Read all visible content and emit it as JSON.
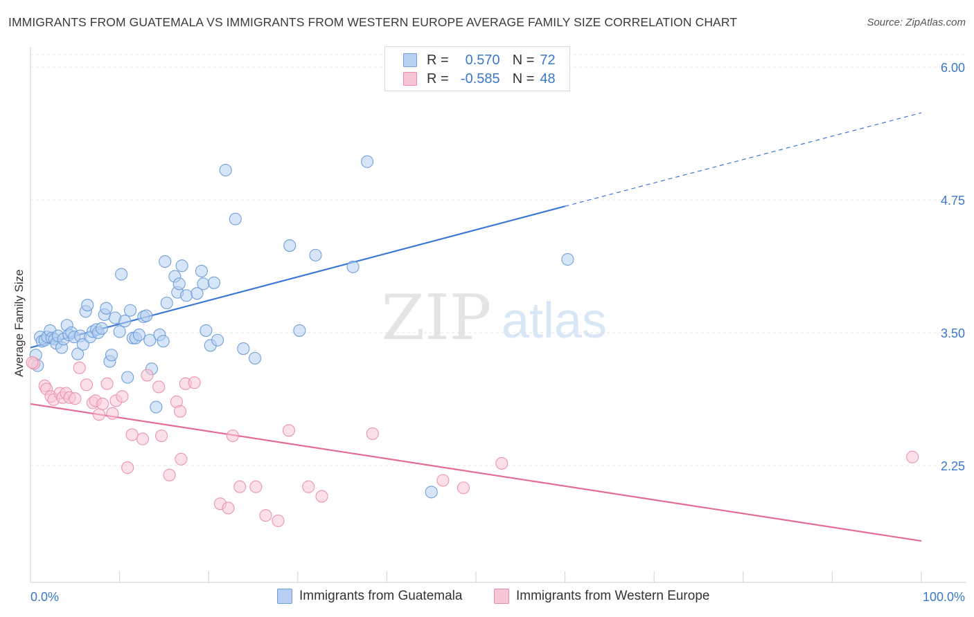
{
  "title": "IMMIGRANTS FROM GUATEMALA VS IMMIGRANTS FROM WESTERN EUROPE AVERAGE FAMILY SIZE CORRELATION CHART",
  "source": "Source: ZipAtlas.com",
  "watermark": {
    "zip": "ZIP",
    "atlas": "atlas"
  },
  "legend": {
    "r_label": "R =",
    "n_label": "N =",
    "rows": [
      {
        "r": "0.570",
        "n": "72",
        "color": "#a9c8f0",
        "border": "#6f9fd8"
      },
      {
        "r": "-0.585",
        "n": "48",
        "color": "#f6bfd0",
        "border": "#e98aa9"
      }
    ]
  },
  "colors": {
    "blue": "#3a78d4",
    "blue_fill": "#b6d0f3",
    "pink": "#e46a98",
    "pink_fill": "#f7c6d6",
    "tick_text": "#3a78c9"
  },
  "chart_data": {
    "type": "scatter",
    "title": "IMMIGRANTS FROM GUATEMALA VS IMMIGRANTS FROM WESTERN EUROPE AVERAGE FAMILY SIZE CORRELATION CHART",
    "xlabel": "",
    "ylabel": "Average Family Size",
    "xlim": [
      0,
      100
    ],
    "ylim": [
      1.0,
      6.15
    ],
    "x_tick_labels": [
      "0.0%",
      "100.0%"
    ],
    "y_ticks": [
      2.25,
      3.5,
      4.75,
      6.0
    ],
    "y_tick_labels": [
      "2.25",
      "3.50",
      "4.75",
      "6.00"
    ],
    "grid": "horizontal dashed",
    "series": [
      {
        "name": "Immigrants from Guatemala",
        "points": [
          [
            0.6,
            3.29
          ],
          [
            0.8,
            3.19
          ],
          [
            1.1,
            3.46
          ],
          [
            1.3,
            3.42
          ],
          [
            1.6,
            3.43
          ],
          [
            1.9,
            3.46
          ],
          [
            2.2,
            3.52
          ],
          [
            2.4,
            3.45
          ],
          [
            2.7,
            3.44
          ],
          [
            2.9,
            3.4
          ],
          [
            3.1,
            3.47
          ],
          [
            3.5,
            3.36
          ],
          [
            3.7,
            3.44
          ],
          [
            4.1,
            3.57
          ],
          [
            4.3,
            3.48
          ],
          [
            4.6,
            3.5
          ],
          [
            4.9,
            3.46
          ],
          [
            5.3,
            3.3
          ],
          [
            5.6,
            3.47
          ],
          [
            5.9,
            3.39
          ],
          [
            6.2,
            3.7
          ],
          [
            6.4,
            3.76
          ],
          [
            6.7,
            3.46
          ],
          [
            7.0,
            3.51
          ],
          [
            7.4,
            3.53
          ],
          [
            7.6,
            3.5
          ],
          [
            8.0,
            3.54
          ],
          [
            8.3,
            3.67
          ],
          [
            8.5,
            3.73
          ],
          [
            8.9,
            3.23
          ],
          [
            9.1,
            3.29
          ],
          [
            9.5,
            3.64
          ],
          [
            10.0,
            3.51
          ],
          [
            10.2,
            4.05
          ],
          [
            10.6,
            3.61
          ],
          [
            10.9,
            3.08
          ],
          [
            11.2,
            3.71
          ],
          [
            11.5,
            3.45
          ],
          [
            11.8,
            3.45
          ],
          [
            12.2,
            3.48
          ],
          [
            12.7,
            3.65
          ],
          [
            13.0,
            3.66
          ],
          [
            13.4,
            3.43
          ],
          [
            13.6,
            3.16
          ],
          [
            14.1,
            2.8
          ],
          [
            14.5,
            3.48
          ],
          [
            14.9,
            3.42
          ],
          [
            15.1,
            4.17
          ],
          [
            15.3,
            3.78
          ],
          [
            16.2,
            4.03
          ],
          [
            16.5,
            3.88
          ],
          [
            16.7,
            3.96
          ],
          [
            17.0,
            4.13
          ],
          [
            17.5,
            3.85
          ],
          [
            18.7,
            3.87
          ],
          [
            19.2,
            4.08
          ],
          [
            19.4,
            3.96
          ],
          [
            19.7,
            3.52
          ],
          [
            20.2,
            3.38
          ],
          [
            20.6,
            3.97
          ],
          [
            21.0,
            3.43
          ],
          [
            21.9,
            5.03
          ],
          [
            23.0,
            4.57
          ],
          [
            23.9,
            3.35
          ],
          [
            25.2,
            3.26
          ],
          [
            29.1,
            4.32
          ],
          [
            30.2,
            3.52
          ],
          [
            32.0,
            4.23
          ],
          [
            36.2,
            4.12
          ],
          [
            37.8,
            5.11
          ],
          [
            45.0,
            2.0
          ],
          [
            60.3,
            4.19
          ]
        ]
      },
      {
        "name": "Immigrants from Western Europe",
        "points": [
          [
            0.4,
            3.21
          ],
          [
            1.6,
            3.0
          ],
          [
            1.8,
            2.97
          ],
          [
            2.3,
            2.9
          ],
          [
            2.6,
            2.87
          ],
          [
            3.3,
            2.93
          ],
          [
            3.6,
            2.89
          ],
          [
            4.0,
            2.93
          ],
          [
            4.4,
            2.89
          ],
          [
            5.0,
            2.88
          ],
          [
            5.5,
            3.17
          ],
          [
            6.3,
            3.01
          ],
          [
            7.0,
            2.84
          ],
          [
            7.3,
            2.86
          ],
          [
            7.7,
            2.73
          ],
          [
            8.1,
            2.83
          ],
          [
            8.6,
            3.02
          ],
          [
            9.2,
            2.74
          ],
          [
            9.6,
            2.86
          ],
          [
            10.3,
            2.9
          ],
          [
            10.9,
            2.23
          ],
          [
            11.4,
            2.54
          ],
          [
            12.6,
            2.5
          ],
          [
            13.1,
            3.1
          ],
          [
            14.4,
            2.99
          ],
          [
            14.7,
            2.53
          ],
          [
            15.6,
            2.16
          ],
          [
            16.4,
            2.85
          ],
          [
            16.8,
            2.76
          ],
          [
            16.9,
            2.31
          ],
          [
            17.4,
            3.02
          ],
          [
            18.4,
            3.03
          ],
          [
            21.3,
            1.89
          ],
          [
            22.2,
            1.85
          ],
          [
            22.7,
            2.53
          ],
          [
            23.5,
            2.05
          ],
          [
            25.3,
            2.05
          ],
          [
            26.4,
            1.78
          ],
          [
            27.8,
            1.73
          ],
          [
            29.0,
            2.58
          ],
          [
            31.2,
            2.05
          ],
          [
            32.7,
            1.96
          ],
          [
            38.4,
            2.55
          ],
          [
            46.3,
            2.11
          ],
          [
            48.6,
            2.04
          ],
          [
            52.9,
            2.27
          ],
          [
            99.0,
            2.33
          ],
          [
            0.2,
            3.22
          ]
        ]
      }
    ],
    "trendlines": [
      {
        "series": "Immigrants from Guatemala",
        "x": [
          0,
          60
        ],
        "y": [
          3.36,
          4.69
        ],
        "dashed_extension_to": [
          100,
          5.57
        ]
      },
      {
        "series": "Immigrants from Western Europe",
        "x": [
          0,
          100
        ],
        "y": [
          2.83,
          1.54
        ]
      }
    ]
  },
  "legend_bottom": [
    "Immigrants from Guatemala",
    "Immigrants from Western Europe"
  ]
}
